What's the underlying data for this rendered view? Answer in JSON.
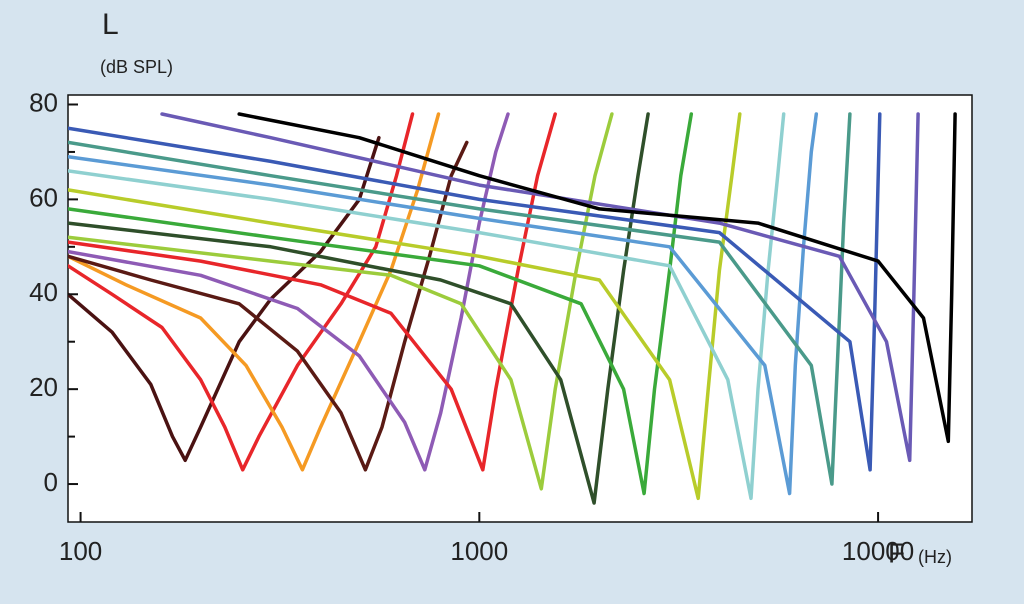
{
  "chart_data": {
    "type": "line",
    "ylabel": "L",
    "ylabel_unit": "(dB SPL)",
    "xlabel": "F",
    "xlabel_unit": "(Hz)",
    "xscale": "log",
    "xlim": [
      93,
      17200
    ],
    "xticks": [
      100,
      1000,
      10000
    ],
    "ylim": [
      -8,
      82
    ],
    "yticks": [
      0,
      20,
      40,
      60,
      80
    ],
    "yminorticks": [
      10,
      30,
      50,
      70
    ],
    "series": [
      {
        "color": "#4a1212",
        "x": [
          93,
          120,
          150,
          170,
          183,
          200,
          250,
          300,
          400,
          500,
          560
        ],
        "values": [
          40,
          32,
          21,
          10,
          5,
          12,
          30,
          39,
          49,
          60,
          73
        ]
      },
      {
        "color": "#e8262a",
        "x": [
          93,
          120,
          160,
          200,
          230,
          255,
          280,
          350,
          450,
          550,
          620,
          680
        ],
        "values": [
          46,
          40,
          33,
          22,
          12,
          3,
          10,
          25,
          38,
          50,
          65,
          78
        ]
      },
      {
        "color": "#f59a23",
        "x": [
          93,
          130,
          200,
          260,
          320,
          360,
          400,
          500,
          600,
          700,
          790
        ],
        "values": [
          48,
          42,
          35,
          25,
          12,
          3,
          12,
          30,
          45,
          62,
          78
        ]
      },
      {
        "color": "#5a1a14",
        "x": [
          93,
          150,
          250,
          350,
          450,
          518,
          570,
          650,
          750,
          850,
          930
        ],
        "values": [
          48,
          43,
          38,
          28,
          15,
          3,
          12,
          30,
          48,
          65,
          72
        ]
      },
      {
        "color": "#8e5bb5",
        "x": [
          93,
          200,
          350,
          500,
          650,
          730,
          800,
          900,
          1000,
          1100,
          1180
        ],
        "values": [
          49,
          44,
          37,
          27,
          13,
          3,
          15,
          35,
          55,
          70,
          78
        ]
      },
      {
        "color": "#e8262a",
        "x": [
          93,
          200,
          400,
          600,
          850,
          1020,
          1100,
          1250,
          1400,
          1550
        ],
        "values": [
          51,
          47,
          42,
          36,
          20,
          3,
          20,
          45,
          65,
          78
        ]
      },
      {
        "color": "#9ccc3c",
        "x": [
          93,
          300,
          600,
          900,
          1200,
          1430,
          1550,
          1750,
          1950,
          2150
        ],
        "values": [
          52,
          47,
          44,
          38,
          22,
          -1,
          20,
          45,
          65,
          78
        ]
      },
      {
        "color": "#2f4f2a",
        "x": [
          93,
          300,
          800,
          1200,
          1600,
          1940,
          2100,
          2300,
          2500,
          2650
        ],
        "values": [
          55,
          50,
          43,
          38,
          22,
          -4,
          20,
          45,
          65,
          78
        ]
      },
      {
        "color": "#3aaa3a",
        "x": [
          93,
          300,
          1000,
          1800,
          2300,
          2590,
          2750,
          3000,
          3200,
          3400
        ],
        "values": [
          58,
          52,
          46,
          38,
          20,
          -2,
          20,
          45,
          65,
          78
        ]
      },
      {
        "color": "#b8cc2a",
        "x": [
          93,
          300,
          1000,
          2000,
          3000,
          3540,
          3750,
          4000,
          4300,
          4500
        ],
        "values": [
          62,
          55,
          48,
          43,
          22,
          -3,
          20,
          45,
          65,
          78
        ]
      },
      {
        "color": "#8fd0d0",
        "x": [
          93,
          300,
          1000,
          3000,
          4200,
          4800,
          5000,
          5300,
          5600,
          5800
        ],
        "values": [
          66,
          60,
          53,
          46,
          22,
          -3,
          20,
          45,
          65,
          78
        ]
      },
      {
        "color": "#5b9bd5",
        "x": [
          93,
          300,
          1000,
          3000,
          5200,
          6000,
          6200,
          6500,
          6800,
          7000
        ],
        "values": [
          69,
          63,
          56,
          50,
          25,
          -2,
          25,
          50,
          70,
          78
        ]
      },
      {
        "color": "#4a9a8a",
        "x": [
          93,
          300,
          1000,
          4000,
          6800,
          7660,
          7900,
          8200,
          8500
        ],
        "values": [
          72,
          65,
          58,
          51,
          25,
          0,
          25,
          55,
          78
        ]
      },
      {
        "color": "#3a5ab5",
        "x": [
          93,
          300,
          1000,
          4000,
          8500,
          9550,
          9800,
          10100
        ],
        "values": [
          75,
          68,
          60,
          53,
          30,
          3,
          35,
          78
        ]
      },
      {
        "color": "#6a5ab5",
        "x": [
          160,
          300,
          1000,
          4000,
          8000,
          10500,
          12000,
          12300,
          12600
        ],
        "values": [
          78,
          73,
          63,
          55,
          48,
          30,
          5,
          40,
          78
        ]
      },
      {
        "color": "#000000",
        "x": [
          250,
          500,
          1000,
          2000,
          5000,
          10000,
          13000,
          15000,
          15300,
          15600
        ],
        "values": [
          78,
          73,
          65,
          58,
          55,
          47,
          35,
          9,
          40,
          78
        ]
      }
    ]
  }
}
